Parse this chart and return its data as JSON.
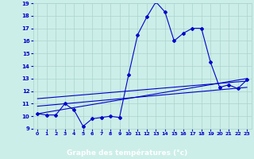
{
  "xlabel": "Graphe des températures (°c)",
  "background_color": "#cceee8",
  "grid_color": "#aad4cc",
  "line_color": "#0000cc",
  "xlabel_bg": "#3333cc",
  "xlabel_fg": "#ffffff",
  "x_hours": [
    0,
    1,
    2,
    3,
    4,
    5,
    6,
    7,
    8,
    9,
    10,
    11,
    12,
    13,
    14,
    15,
    16,
    17,
    18,
    19,
    20,
    21,
    22,
    23
  ],
  "temp_curve": [
    10.2,
    10.1,
    10.1,
    11.0,
    10.5,
    9.2,
    9.8,
    9.9,
    10.0,
    9.9,
    13.3,
    16.5,
    17.9,
    19.1,
    18.3,
    16.0,
    16.6,
    17.0,
    17.0,
    14.3,
    12.3,
    12.5,
    12.2,
    12.9
  ],
  "trend_line1": [
    [
      0,
      10.2
    ],
    [
      23,
      13.0
    ]
  ],
  "trend_line2": [
    [
      0,
      10.8
    ],
    [
      23,
      12.3
    ]
  ],
  "trend_line3": [
    [
      0,
      11.4
    ],
    [
      23,
      12.8
    ]
  ],
  "ylim": [
    9,
    19
  ],
  "yticks": [
    9,
    10,
    11,
    12,
    13,
    14,
    15,
    16,
    17,
    18,
    19
  ],
  "xticks": [
    0,
    1,
    2,
    3,
    4,
    5,
    6,
    7,
    8,
    9,
    10,
    11,
    12,
    13,
    14,
    15,
    16,
    17,
    18,
    19,
    20,
    21,
    22,
    23
  ]
}
